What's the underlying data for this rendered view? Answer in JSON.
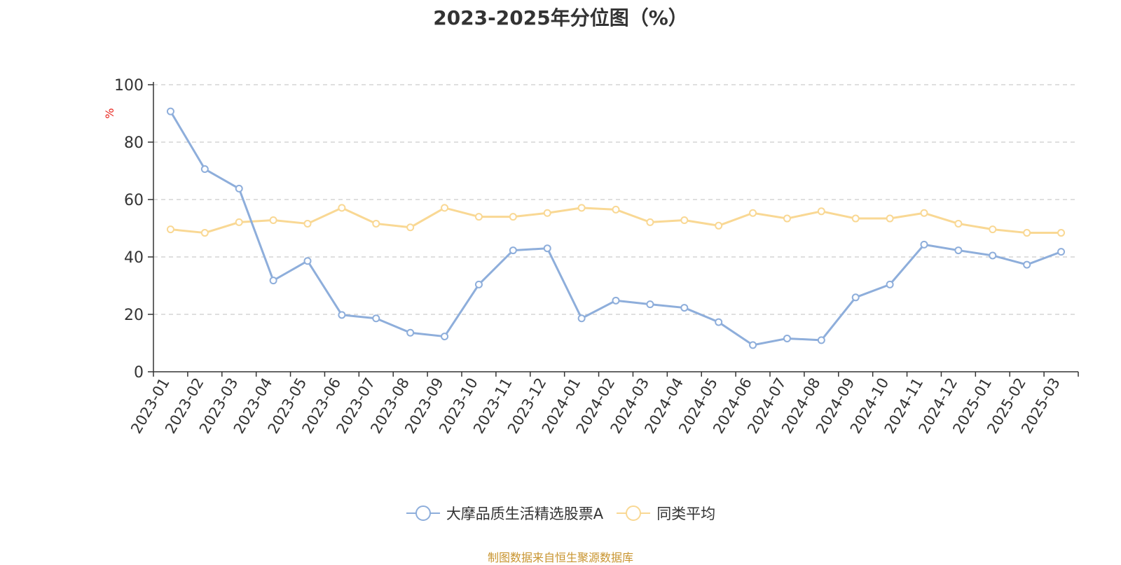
{
  "chart_data": {
    "type": "line",
    "title": "2023-2025年分位图（%）",
    "ylabel": "%",
    "xlabel": "",
    "ylim": [
      0,
      100
    ],
    "yticks": [
      0,
      20,
      40,
      60,
      80,
      100
    ],
    "grid": true,
    "legend_position": "bottom",
    "categories": [
      "2023-01",
      "2023-02",
      "2023-03",
      "2023-04",
      "2023-05",
      "2023-06",
      "2023-07",
      "2023-08",
      "2023-09",
      "2023-10",
      "2023-11",
      "2023-12",
      "2024-01",
      "2024-02",
      "2024-03",
      "2024-04",
      "2024-05",
      "2024-06",
      "2024-07",
      "2024-08",
      "2024-09",
      "2024-10",
      "2024-11",
      "2024-12",
      "2025-01",
      "2025-02",
      "2025-03"
    ],
    "series": [
      {
        "name": "大摩品质生活精选股票A",
        "color": "#8eaedb",
        "values": [
          90.7,
          70.6,
          63.8,
          31.8,
          38.6,
          19.8,
          18.6,
          13.6,
          12.3,
          30.4,
          42.3,
          43.0,
          18.6,
          24.8,
          23.5,
          22.3,
          17.3,
          9.3,
          11.6,
          11.0,
          25.9,
          30.4,
          44.3,
          42.3,
          40.5,
          37.3,
          41.8
        ]
      },
      {
        "name": "同类平均",
        "color": "#f9d894",
        "values": [
          49.6,
          48.4,
          52.1,
          52.8,
          51.6,
          57.1,
          51.6,
          50.3,
          57.1,
          54.0,
          54.0,
          55.3,
          57.1,
          56.5,
          52.1,
          52.8,
          50.9,
          55.3,
          53.4,
          55.9,
          53.4,
          53.4,
          55.3,
          51.6,
          49.6,
          48.4,
          48.4
        ]
      }
    ]
  },
  "source_text": "制图数据来自恒生聚源数据库"
}
